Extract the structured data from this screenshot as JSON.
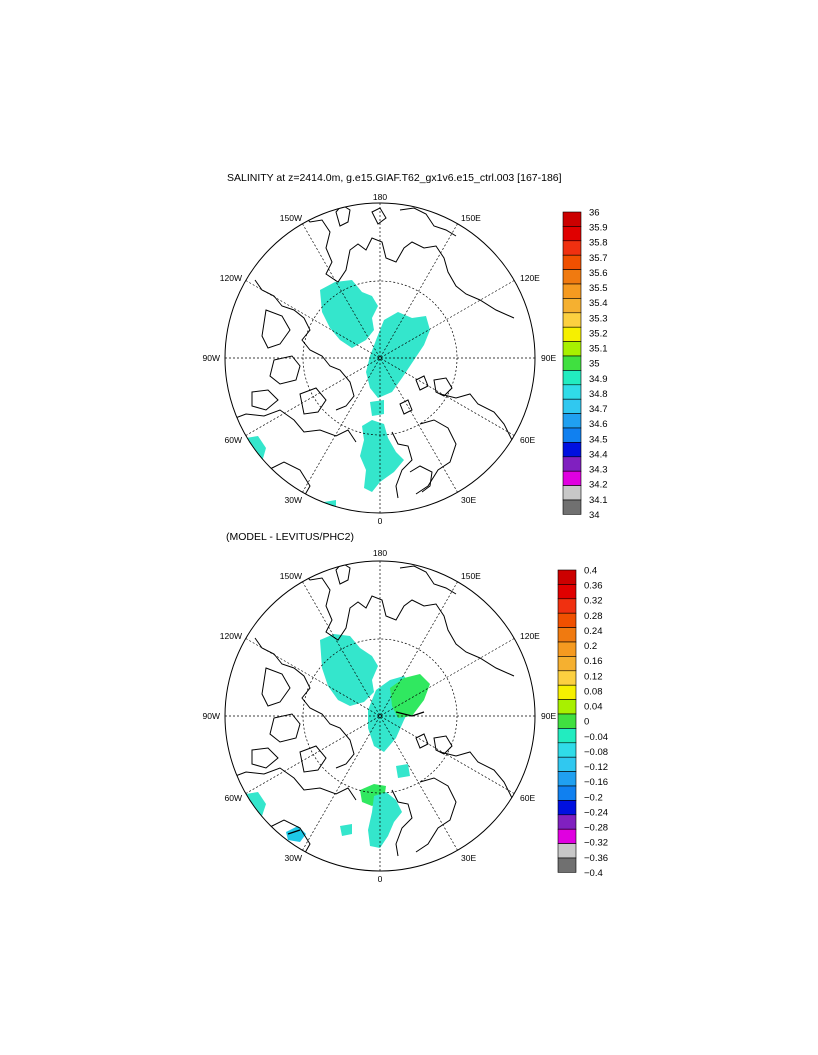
{
  "panels": [
    {
      "title": "SALINITY at z=2414.0m, g.e15.GIAF.T62_gx1v6.e15_ctrl.003 [167-186]",
      "lon_labels": {
        "top": "180",
        "bottom": "0",
        "left": "90W",
        "right": "90E",
        "ul1": "150W",
        "ul2": "120W",
        "ur1": "150E",
        "ur2": "120E",
        "ll1": "60W",
        "ll2": "30W",
        "lr1": "60E",
        "lr2": "30E"
      },
      "colorbar": {
        "labels": [
          "36",
          "35.9",
          "35.8",
          "35.7",
          "35.6",
          "35.5",
          "35.4",
          "35.3",
          "35.2",
          "35.1",
          "35",
          "34.9",
          "34.8",
          "34.7",
          "34.6",
          "34.5",
          "34.4",
          "34.3",
          "34.2",
          "34.1",
          "34"
        ],
        "colors": [
          "#cc0000",
          "#e00000",
          "#f03010",
          "#f05000",
          "#f07a10",
          "#f59a20",
          "#f5b030",
          "#fcd040",
          "#f6f000",
          "#a8f000",
          "#40e040",
          "#22ecc0",
          "#30dce8",
          "#30c8f0",
          "#20a0f0",
          "#1080f0",
          "#0010e0",
          "#8020c0",
          "#e000e0",
          "#c8c8c8",
          "#707070"
        ]
      }
    },
    {
      "title": "(MODEL - LEVITUS/PHC2)",
      "lon_labels": {
        "top": "180",
        "bottom": "0",
        "left": "90W",
        "right": "90E",
        "ul1": "150W",
        "ul2": "120W",
        "ur1": "150E",
        "ur2": "120E",
        "ll1": "60W",
        "ll2": "30W",
        "lr1": "60E",
        "lr2": "30E"
      },
      "colorbar": {
        "labels": [
          "0.4",
          "0.36",
          "0.32",
          "0.28",
          "0.24",
          "0.2",
          "0.16",
          "0.12",
          "0.08",
          "0.04",
          "0",
          "−0.04",
          "−0.08",
          "−0.12",
          "−0.16",
          "−0.2",
          "−0.24",
          "−0.28",
          "−0.32",
          "−0.36",
          "−0.4"
        ],
        "colors": [
          "#cc0000",
          "#e00000",
          "#f03010",
          "#f05000",
          "#f07a10",
          "#f59a20",
          "#f5b030",
          "#fcd040",
          "#f6f000",
          "#a8f000",
          "#40e040",
          "#22ecc0",
          "#30dce8",
          "#30c8f0",
          "#20a0f0",
          "#1080f0",
          "#0010e0",
          "#8020c0",
          "#e000e0",
          "#c8c8c8",
          "#707070"
        ]
      }
    }
  ],
  "colors": {
    "salinity_fill": "#34e6cc",
    "anomaly_fill": "#34e6cc",
    "positive_fill": "#30e860",
    "dark_cyan": "#1ec8e6",
    "coast": "#000000"
  }
}
